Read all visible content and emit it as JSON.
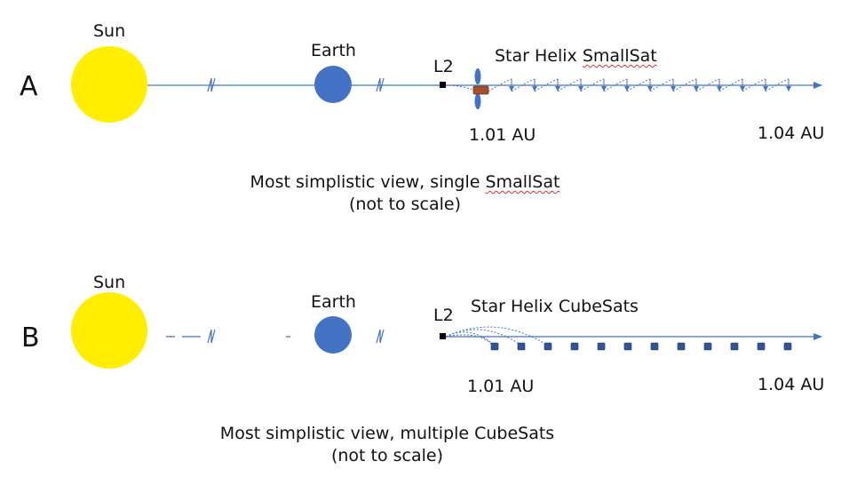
{
  "panelA": {
    "letter": "A",
    "sun_label": "Sun",
    "earth_label": "Earth",
    "l2_label": "L2",
    "title_prefix": "Star Helix ",
    "title_flagged": "SmallSat",
    "au_start": "1.01 AU",
    "au_end": "1.04 AU",
    "caption_line1_prefix": "Most simplistic view, single ",
    "caption_line1_flagged": "SmallSat",
    "caption_line2": "(not to scale)"
  },
  "panelB": {
    "letter": "B",
    "sun_label": "Sun",
    "earth_label": "Earth",
    "l2_label": "L2",
    "title": "Star Helix CubeSats",
    "au_start": "1.01 AU",
    "au_end": "1.04 AU",
    "caption_line1": "Most simplistic view, multiple CubeSats",
    "caption_line2": "(not to scale)"
  },
  "colors": {
    "sun": "#ffee00",
    "earth": "#4472c4",
    "axis": "#4472c4",
    "smallsat_body": "#a0522d",
    "cubesat": "#2f5597",
    "spellcheck": "#e03030"
  }
}
